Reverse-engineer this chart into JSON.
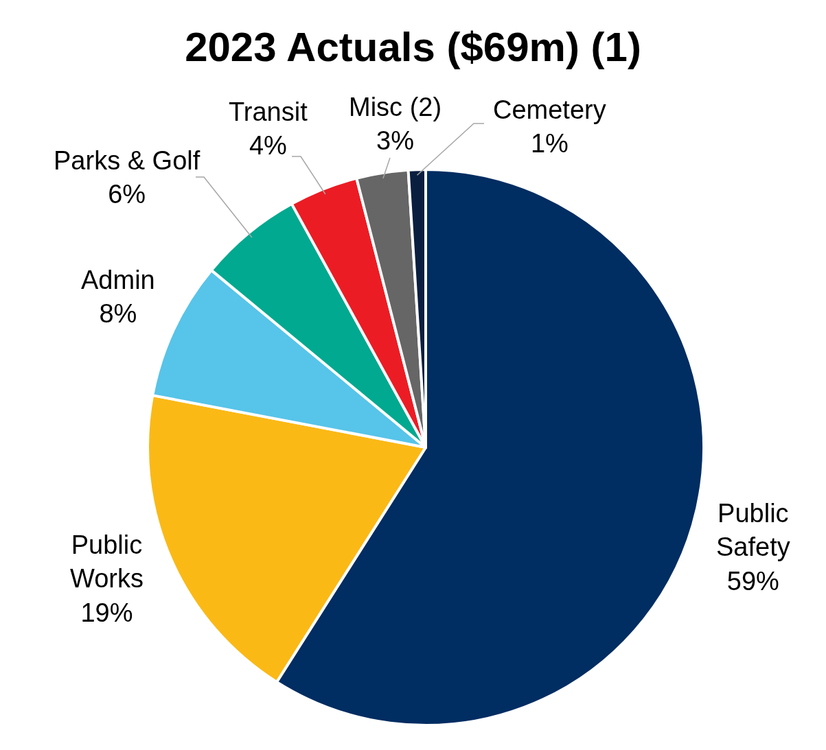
{
  "chart_data": {
    "type": "pie",
    "title": "2023 Actuals ($69m) (1)",
    "categories": [
      "Public\nSafety",
      "Public\nWorks",
      "Admin",
      "Parks & Golf",
      "Transit",
      "Misc (2)",
      "Cemetery"
    ],
    "values": [
      59,
      19,
      8,
      6,
      4,
      3,
      1
    ],
    "value_labels": [
      "59%",
      "19%",
      "8%",
      "6%",
      "4%",
      "3%",
      "1%"
    ],
    "colors": [
      "#002d62",
      "#fbb916",
      "#57c4e9",
      "#00a98f",
      "#ec1c24",
      "#666666",
      "#0a1f3f"
    ],
    "legend": false
  }
}
